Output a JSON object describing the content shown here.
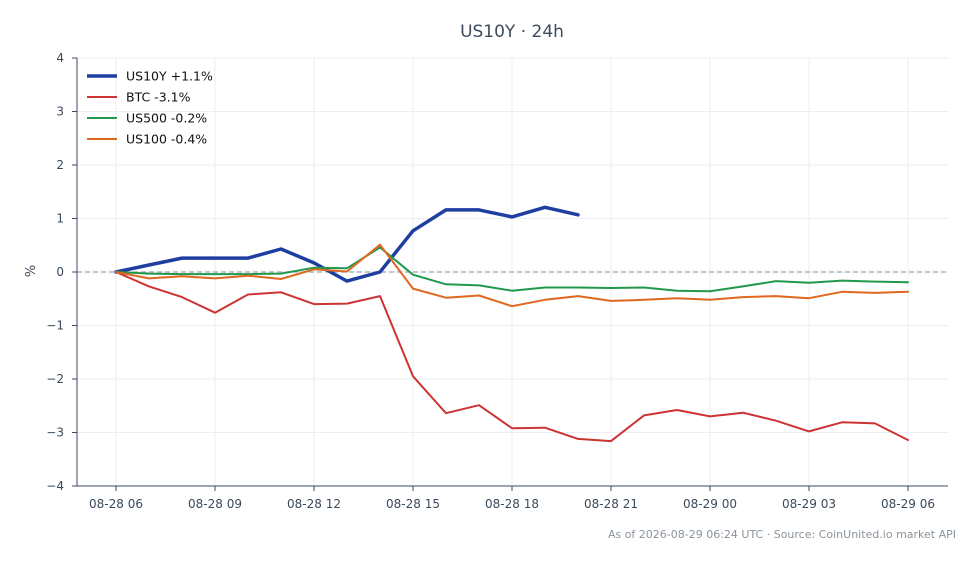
{
  "chart_data": {
    "type": "line",
    "title": "US10Y · 24h",
    "xlabel": "",
    "ylabel": "%",
    "ylim": [
      -4,
      4
    ],
    "yticks": [
      4,
      3,
      2,
      1,
      0,
      -1,
      -2,
      -3,
      -4
    ],
    "ytick_labels": [
      "4",
      "3",
      "2",
      "1",
      "0",
      "−1",
      "−2",
      "−3",
      "−4"
    ],
    "x": [
      "2026-08-28 06:00",
      "2026-08-28 07:00",
      "2026-08-28 08:00",
      "2026-08-28 09:00",
      "2026-08-28 10:00",
      "2026-08-28 11:00",
      "2026-08-28 12:00",
      "2026-08-28 13:00",
      "2026-08-28 14:00",
      "2026-08-28 15:00",
      "2026-08-28 16:00",
      "2026-08-28 17:00",
      "2026-08-28 18:00",
      "2026-08-28 19:00",
      "2026-08-28 20:00",
      "2026-08-28 21:00",
      "2026-08-28 22:00",
      "2026-08-28 23:00",
      "2026-08-29 00:00",
      "2026-08-29 01:00",
      "2026-08-29 02:00",
      "2026-08-29 03:00",
      "2026-08-29 04:00",
      "2026-08-29 05:00",
      "2026-08-29 06:00"
    ],
    "xticks": [
      "08-28 06",
      "08-28 09",
      "08-28 12",
      "08-28 15",
      "08-28 18",
      "08-28 21",
      "08-29 00",
      "08-29 03",
      "08-29 06"
    ],
    "reference_line": 0,
    "grid": true,
    "legend_position": "top-left",
    "series": [
      {
        "name": "US10Y +1.1%",
        "color": "#1f3fa0",
        "width": 3.5,
        "values": [
          0,
          0.13,
          0.26,
          0.26,
          0.26,
          0.43,
          0.17,
          -0.17,
          0.0,
          0.77,
          1.16,
          1.16,
          1.03,
          1.21,
          1.07,
          null,
          null,
          null,
          null,
          null,
          null,
          null,
          null,
          null,
          null
        ]
      },
      {
        "name": "BTC -3.1%",
        "color": "#cc3333",
        "width": 2,
        "values": [
          0,
          -0.27,
          -0.47,
          -0.76,
          -0.42,
          -0.38,
          -0.6,
          -0.59,
          -0.45,
          -1.95,
          -2.64,
          -2.49,
          -2.92,
          -2.91,
          -3.12,
          -3.16,
          -2.68,
          -2.58,
          -2.7,
          -2.63,
          -2.78,
          -2.98,
          -2.81,
          -2.83,
          -3.14
        ]
      },
      {
        "name": "US500 -0.2%",
        "color": "#22994a",
        "width": 2,
        "values": [
          0,
          -0.03,
          -0.04,
          -0.04,
          -0.04,
          -0.03,
          0.08,
          0.07,
          0.46,
          -0.05,
          -0.23,
          -0.25,
          -0.35,
          -0.29,
          -0.29,
          -0.3,
          -0.29,
          -0.35,
          -0.36,
          -0.27,
          -0.17,
          -0.2,
          -0.16,
          -0.18,
          -0.19
        ]
      },
      {
        "name": "US100 -0.4%",
        "color": "#e0671f",
        "width": 2,
        "values": [
          0,
          -0.12,
          -0.08,
          -0.12,
          -0.07,
          -0.13,
          0.05,
          0.01,
          0.51,
          -0.31,
          -0.48,
          -0.44,
          -0.64,
          -0.52,
          -0.45,
          -0.54,
          -0.52,
          -0.49,
          -0.52,
          -0.47,
          -0.45,
          -0.49,
          -0.37,
          -0.39,
          -0.37
        ]
      }
    ],
    "footer": "As of 2026-08-29 06:24 UTC · Source: CoinUnited.io market API"
  },
  "colors": {
    "grid": "#ebeef2",
    "axis": "#3d4b5c",
    "reference_line": "#9aa7b8"
  }
}
